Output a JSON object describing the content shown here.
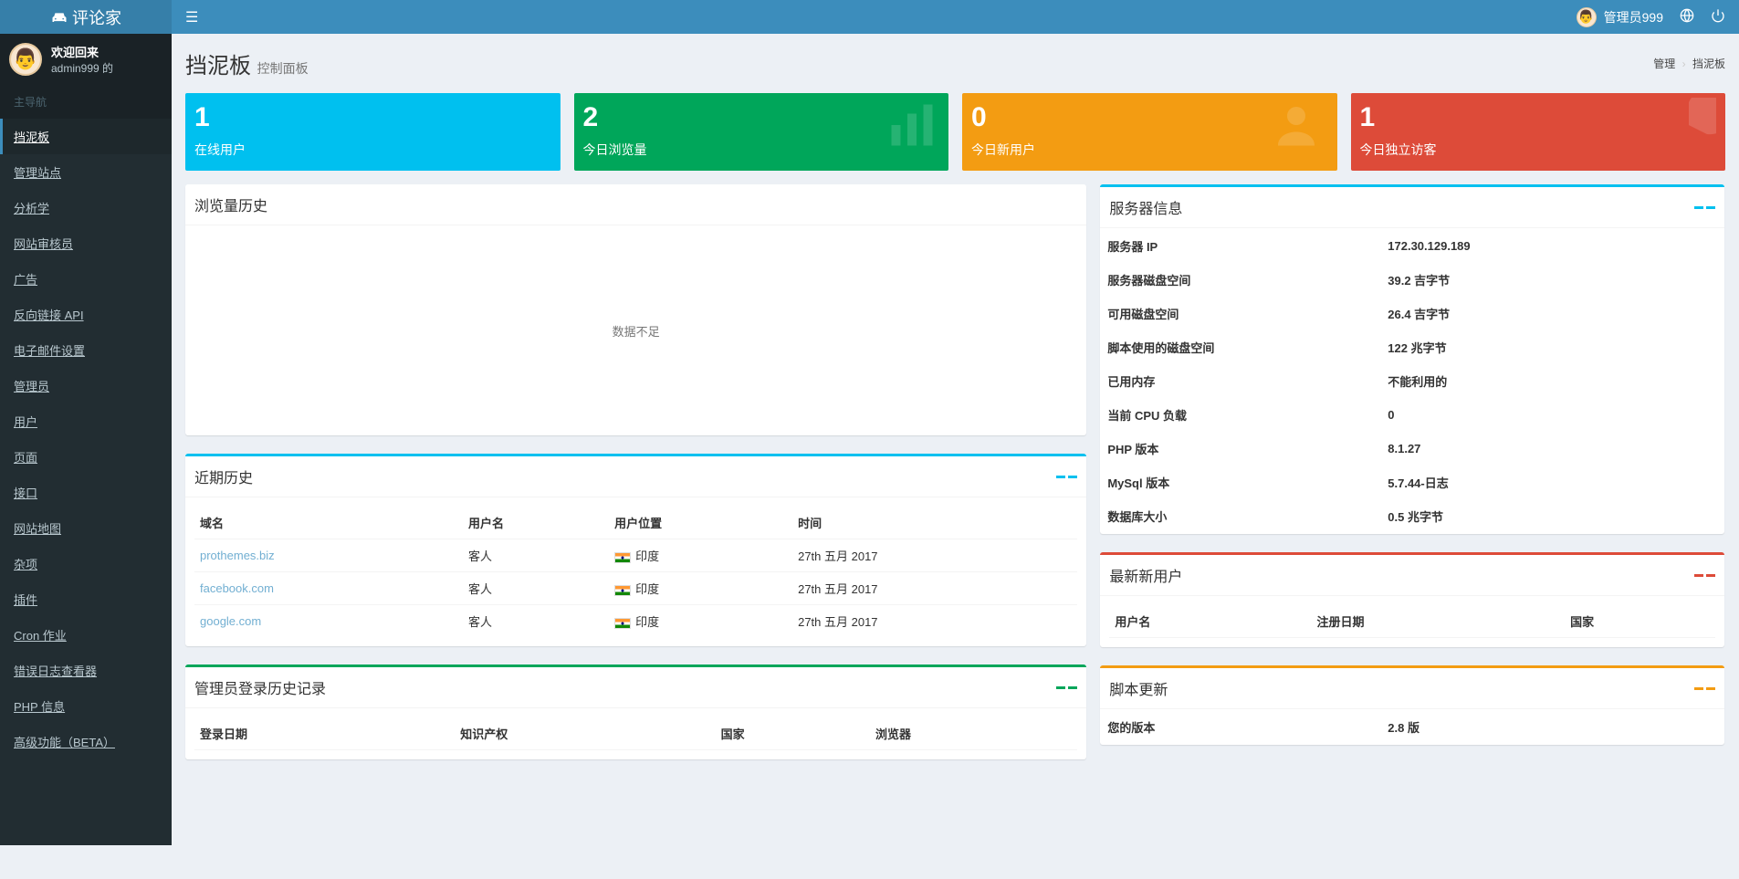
{
  "header": {
    "logo": "评论家",
    "user_label": "管理员999"
  },
  "sidebar": {
    "welcome": "欢迎回来",
    "user": "admin999 的",
    "header": "主导航",
    "items": [
      {
        "label": "挡泥板",
        "active": true
      },
      {
        "label": "管理站点"
      },
      {
        "label": "分析学"
      },
      {
        "label": "网站审核员"
      },
      {
        "label": "广告"
      },
      {
        "label": "反向链接 API"
      },
      {
        "label": "电子邮件设置"
      },
      {
        "label": "管理员"
      },
      {
        "label": "用户"
      },
      {
        "label": "页面"
      },
      {
        "label": "接口"
      },
      {
        "label": "网站地图"
      },
      {
        "label": "杂项"
      },
      {
        "label": "插件"
      },
      {
        "label": "Cron 作业"
      },
      {
        "label": "错误日志查看器"
      },
      {
        "label": "PHP 信息"
      },
      {
        "label": "高级功能（BETA）"
      }
    ]
  },
  "page": {
    "title": "挡泥板",
    "subtitle": "控制面板",
    "breadcrumb": {
      "root": "管理",
      "current": "挡泥板"
    }
  },
  "stats": [
    {
      "value": "1",
      "label": "在线用户",
      "bg": "bg-aqua",
      "icon": "👤"
    },
    {
      "value": "2",
      "label": "今日浏览量",
      "bg": "bg-green",
      "icon": "bars"
    },
    {
      "value": "0",
      "label": "今日新用户",
      "bg": "bg-yellow",
      "icon": "user-plus"
    },
    {
      "value": "1",
      "label": "今日独立访客",
      "bg": "bg-red",
      "icon": "pie"
    }
  ],
  "history_box": {
    "title": "浏览量历史",
    "empty": "数据不足"
  },
  "recent": {
    "title": "近期历史",
    "tool_color": "#00c0ef",
    "cols": {
      "domain": "域名",
      "user": "用户名",
      "location": "用户位置",
      "time": "时间"
    },
    "rows": [
      {
        "domain": "prothemes.biz",
        "user": "客人",
        "location": "印度",
        "time": "27th 五月 2017"
      },
      {
        "domain": "facebook.com",
        "user": "客人",
        "location": "印度",
        "time": "27th 五月 2017"
      },
      {
        "domain": "google.com",
        "user": "客人",
        "location": "印度",
        "time": "27th 五月 2017"
      }
    ]
  },
  "login_history": {
    "title": "管理员登录历史记录",
    "tool_color": "#00a65a",
    "cols": {
      "date": "登录日期",
      "ip": "知识产权",
      "country": "国家",
      "browser": "浏览器"
    }
  },
  "server": {
    "title": "服务器信息",
    "tool_color": "#00c0ef",
    "rows": [
      {
        "k": "服务器 IP",
        "v": "172.30.129.189"
      },
      {
        "k": "服务器磁盘空间",
        "v": "39.2 吉字节"
      },
      {
        "k": "可用磁盘空间",
        "v": "26.4 吉字节"
      },
      {
        "k": "脚本使用的磁盘空间",
        "v": "122 兆字节"
      },
      {
        "k": "已用内存",
        "v": "不能利用的"
      },
      {
        "k": "当前 CPU 负载",
        "v": "0"
      },
      {
        "k": "PHP 版本",
        "v": "8.1.27"
      },
      {
        "k": "MySql 版本",
        "v": "5.7.44-日志"
      },
      {
        "k": "数据库大小",
        "v": "0.5 兆字节"
      }
    ]
  },
  "new_users": {
    "title": "最新新用户",
    "tool_color": "#dd4b39",
    "cols": {
      "user": "用户名",
      "date": "注册日期",
      "country": "国家"
    }
  },
  "updates": {
    "title": "脚本更新",
    "tool_color": "#f39c12",
    "rows": [
      {
        "k": "您的版本",
        "v": "2.8 版"
      }
    ]
  }
}
